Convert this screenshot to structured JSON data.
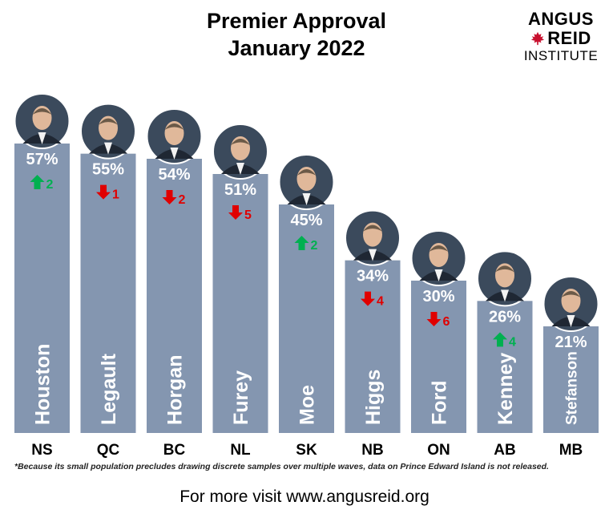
{
  "logo": {
    "line1": "ANGUS",
    "line2": "REID",
    "line3": "INSTITUTE",
    "leaf_color": "#c8102e"
  },
  "footnote": "*Because its small population precludes drawing discrete samples over multiple waves, data on Prince Edward Island is not released.",
  "footer": "For more visit www.angusreid.org",
  "colors": {
    "bar": "#8496b0",
    "up": "#00b050",
    "down": "#e00000"
  },
  "chart_data": {
    "type": "bar",
    "title": "Premier Approval",
    "subtitle": "January 2022",
    "categories": [
      "NS",
      "QC",
      "BC",
      "NL",
      "SK",
      "NB",
      "ON",
      "AB",
      "MB"
    ],
    "premiers": [
      "Houston",
      "Legault",
      "Horgan",
      "Furey",
      "Moe",
      "Higgs",
      "Ford",
      "Kenney",
      "Stefanson"
    ],
    "values": [
      57,
      55,
      54,
      51,
      45,
      34,
      30,
      26,
      21
    ],
    "value_labels": [
      "57%",
      "55%",
      "54%",
      "51%",
      "45%",
      "34%",
      "30%",
      "26%",
      "21%"
    ],
    "changes": [
      {
        "direction": "up",
        "value": "2"
      },
      {
        "direction": "down",
        "value": "1"
      },
      {
        "direction": "down",
        "value": "2"
      },
      {
        "direction": "down",
        "value": "5"
      },
      {
        "direction": "up",
        "value": "2"
      },
      {
        "direction": "down",
        "value": "4"
      },
      {
        "direction": "down",
        "value": "6"
      },
      {
        "direction": "up",
        "value": "4"
      },
      null
    ],
    "ylim": [
      0,
      60
    ],
    "grid": false,
    "legend": "none"
  }
}
